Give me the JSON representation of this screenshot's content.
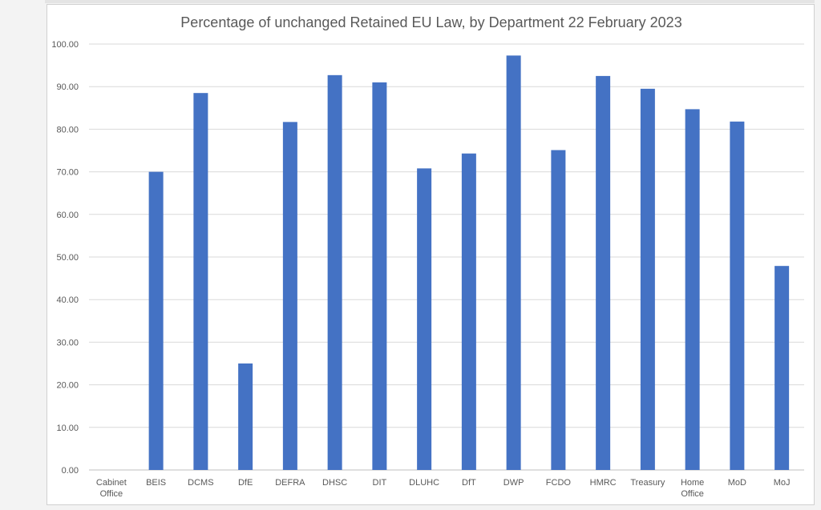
{
  "chart_data": {
    "type": "bar",
    "title": "Percentage of unchanged Retained EU Law, by Department 22 February 2023",
    "xlabel": "",
    "ylabel": "",
    "ylim": [
      0,
      100
    ],
    "yticks": [
      "0.00",
      "10.00",
      "20.00",
      "30.00",
      "40.00",
      "50.00",
      "60.00",
      "70.00",
      "80.00",
      "90.00",
      "100.00"
    ],
    "categories": [
      [
        "Cabinet",
        "Office"
      ],
      [
        "BEIS"
      ],
      [
        "DCMS"
      ],
      [
        "DfE"
      ],
      [
        "DEFRA"
      ],
      [
        "DHSC"
      ],
      [
        "DIT"
      ],
      [
        "DLUHC"
      ],
      [
        "DfT"
      ],
      [
        "DWP"
      ],
      [
        "FCDO"
      ],
      [
        "HMRC"
      ],
      [
        "Treasury"
      ],
      [
        "Home",
        "Office"
      ],
      [
        "MoD"
      ],
      [
        "MoJ"
      ]
    ],
    "values": [
      0,
      70.0,
      88.5,
      25.0,
      81.7,
      92.7,
      91.0,
      70.8,
      74.3,
      97.3,
      75.1,
      92.5,
      89.5,
      84.7,
      81.8,
      47.9
    ],
    "grid": true,
    "legend": "none",
    "bar_color": "#4472C4"
  }
}
